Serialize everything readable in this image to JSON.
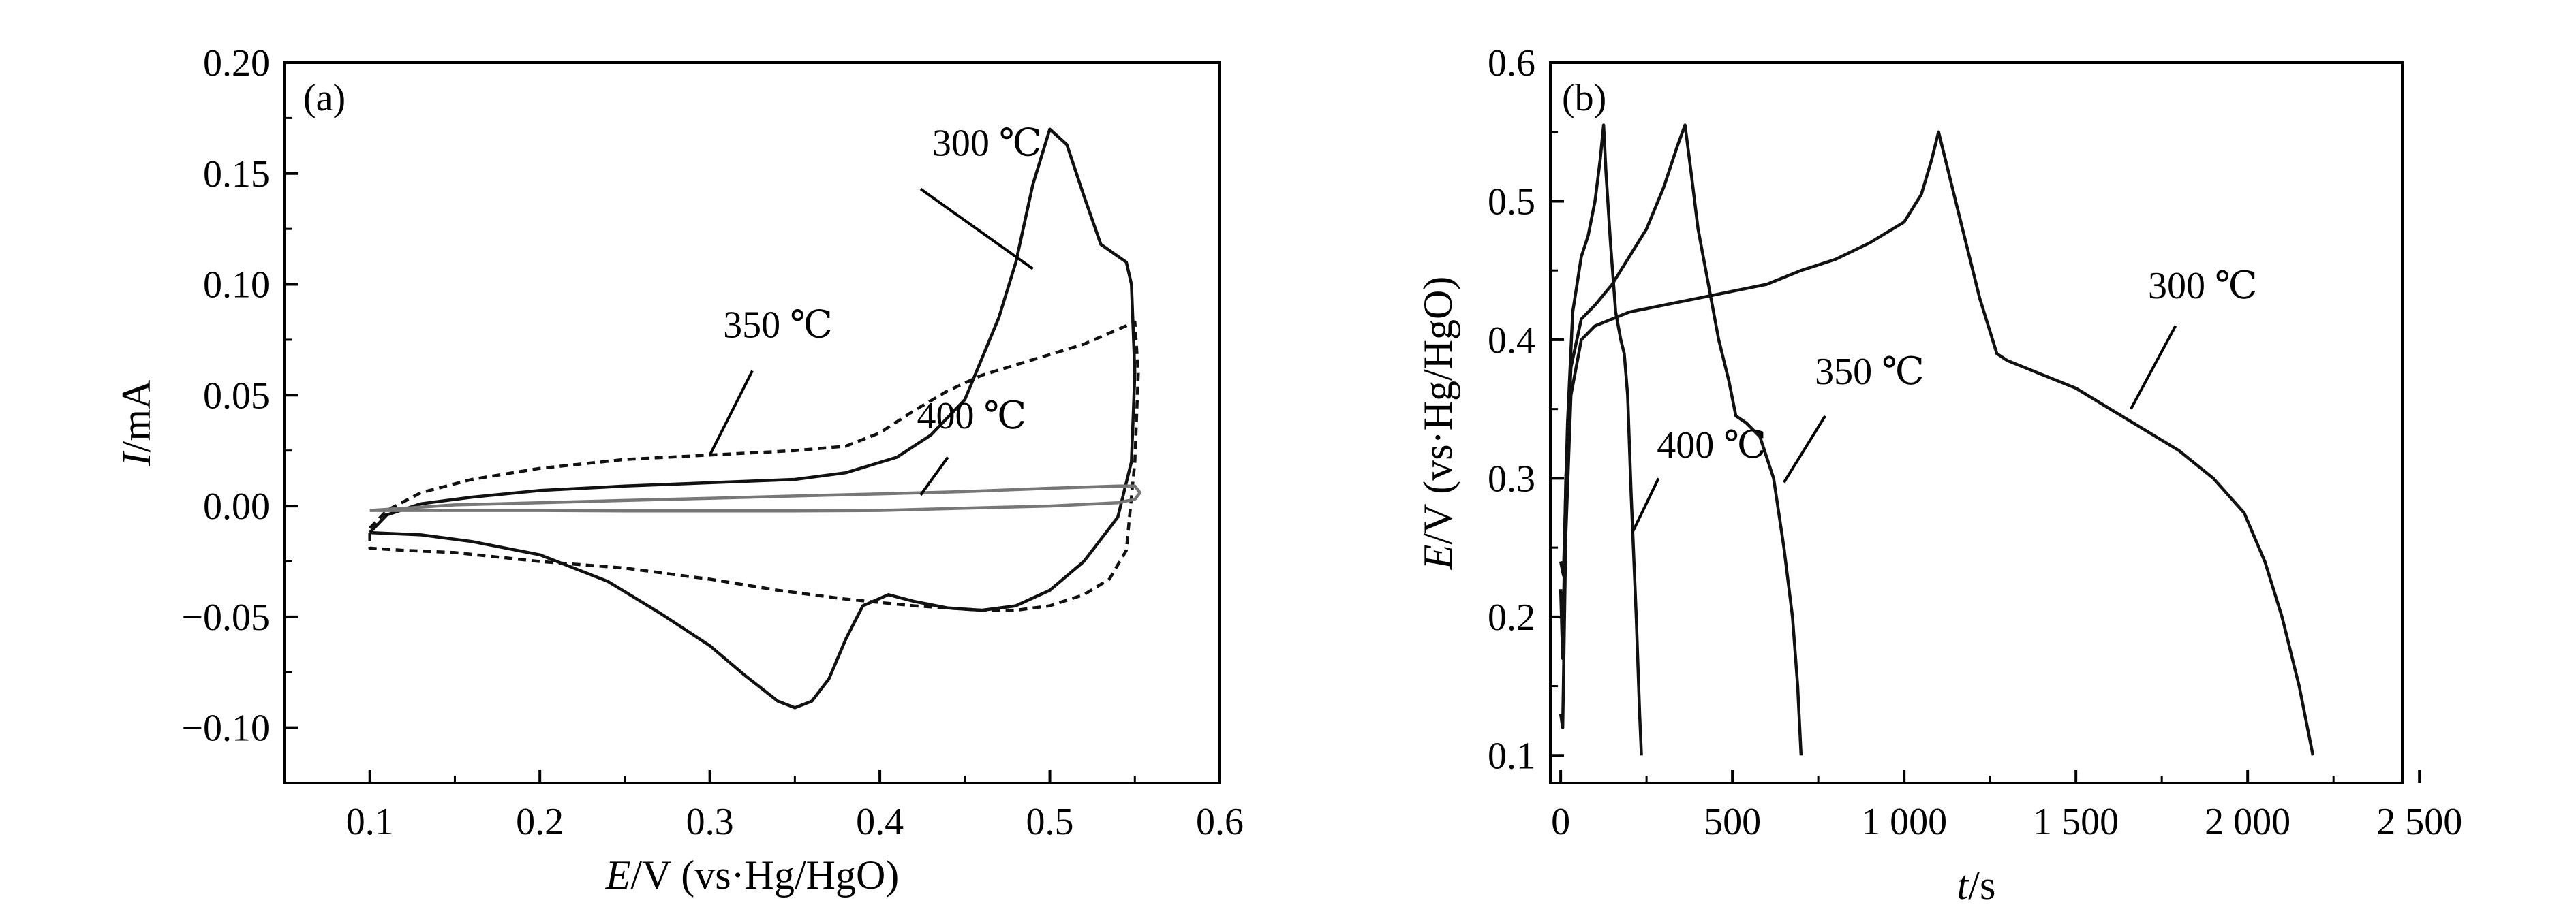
{
  "colors": {
    "axis": "#000000",
    "primary_line": "#111111",
    "secondary_line": "#777777"
  },
  "chart_data": [
    {
      "panel": "(a)",
      "type": "line",
      "xlabel": {
        "italic": "E",
        "rest": "/V (vs·Hg/HgO)"
      },
      "ylabel": {
        "italic": "I",
        "rest": "/mA"
      },
      "xlim": [
        0.05,
        0.6
      ],
      "ylim": [
        -0.125,
        0.2
      ],
      "xticks": [
        0.1,
        0.2,
        0.3,
        0.4,
        0.5,
        0.6
      ],
      "xtick_labels": [
        "0.1",
        "0.2",
        "0.3",
        "0.4",
        "0.5",
        "0.6"
      ],
      "yticks": [
        -0.1,
        -0.05,
        0.0,
        0.05,
        0.1,
        0.15,
        0.2
      ],
      "ytick_labels": [
        "−0.10",
        "−0.05",
        "0.00",
        "0.05",
        "0.10",
        "0.15",
        "0.20"
      ],
      "series": [
        {
          "name": "300 ℃",
          "style": "solid",
          "color": "#111111",
          "points": [
            [
              0.1,
              -0.012
            ],
            [
              0.11,
              -0.004
            ],
            [
              0.13,
              0.001
            ],
            [
              0.16,
              0.004
            ],
            [
              0.2,
              0.007
            ],
            [
              0.25,
              0.009
            ],
            [
              0.3,
              0.0105
            ],
            [
              0.35,
              0.012
            ],
            [
              0.38,
              0.015
            ],
            [
              0.41,
              0.022
            ],
            [
              0.43,
              0.032
            ],
            [
              0.45,
              0.048
            ],
            [
              0.47,
              0.085
            ],
            [
              0.48,
              0.11
            ],
            [
              0.49,
              0.145
            ],
            [
              0.5,
              0.17
            ],
            [
              0.51,
              0.163
            ],
            [
              0.52,
              0.14
            ],
            [
              0.53,
              0.118
            ],
            [
              0.545,
              0.11
            ],
            [
              0.548,
              0.1
            ],
            [
              0.55,
              0.06
            ],
            [
              0.548,
              0.02
            ],
            [
              0.54,
              -0.005
            ],
            [
              0.52,
              -0.025
            ],
            [
              0.5,
              -0.038
            ],
            [
              0.48,
              -0.045
            ],
            [
              0.46,
              -0.047
            ],
            [
              0.44,
              -0.046
            ],
            [
              0.42,
              -0.043
            ],
            [
              0.405,
              -0.04
            ],
            [
              0.39,
              -0.045
            ],
            [
              0.38,
              -0.06
            ],
            [
              0.37,
              -0.078
            ],
            [
              0.36,
              -0.088
            ],
            [
              0.35,
              -0.091
            ],
            [
              0.34,
              -0.088
            ],
            [
              0.32,
              -0.076
            ],
            [
              0.3,
              -0.063
            ],
            [
              0.27,
              -0.048
            ],
            [
              0.24,
              -0.034
            ],
            [
              0.2,
              -0.022
            ],
            [
              0.16,
              -0.016
            ],
            [
              0.13,
              -0.013
            ],
            [
              0.1,
              -0.012
            ]
          ]
        },
        {
          "name": "350 ℃",
          "style": "dashed",
          "color": "#111111",
          "points": [
            [
              0.1,
              -0.01
            ],
            [
              0.11,
              -0.002
            ],
            [
              0.13,
              0.006
            ],
            [
              0.16,
              0.012
            ],
            [
              0.2,
              0.017
            ],
            [
              0.25,
              0.021
            ],
            [
              0.3,
              0.023
            ],
            [
              0.35,
              0.025
            ],
            [
              0.38,
              0.027
            ],
            [
              0.4,
              0.033
            ],
            [
              0.42,
              0.043
            ],
            [
              0.44,
              0.052
            ],
            [
              0.46,
              0.059
            ],
            [
              0.49,
              0.066
            ],
            [
              0.52,
              0.073
            ],
            [
              0.55,
              0.083
            ],
            [
              0.552,
              0.06
            ],
            [
              0.55,
              0.02
            ],
            [
              0.545,
              -0.02
            ],
            [
              0.535,
              -0.033
            ],
            [
              0.52,
              -0.04
            ],
            [
              0.5,
              -0.045
            ],
            [
              0.48,
              -0.047
            ],
            [
              0.46,
              -0.047
            ],
            [
              0.42,
              -0.045
            ],
            [
              0.38,
              -0.042
            ],
            [
              0.34,
              -0.038
            ],
            [
              0.3,
              -0.033
            ],
            [
              0.25,
              -0.028
            ],
            [
              0.2,
              -0.025
            ],
            [
              0.15,
              -0.021
            ],
            [
              0.12,
              -0.02
            ],
            [
              0.1,
              -0.019
            ],
            [
              0.1,
              -0.01
            ]
          ]
        },
        {
          "name": "400 ℃",
          "style": "solid",
          "color": "#777777",
          "points": [
            [
              0.1,
              -0.002
            ],
            [
              0.15,
              0.0005
            ],
            [
              0.2,
              0.0015
            ],
            [
              0.25,
              0.0025
            ],
            [
              0.3,
              0.0035
            ],
            [
              0.35,
              0.0045
            ],
            [
              0.4,
              0.0055
            ],
            [
              0.45,
              0.0065
            ],
            [
              0.5,
              0.008
            ],
            [
              0.54,
              0.009
            ],
            [
              0.55,
              0.009
            ],
            [
              0.553,
              0.006
            ],
            [
              0.55,
              0.003
            ],
            [
              0.54,
              0.0015
            ],
            [
              0.5,
              0.0
            ],
            [
              0.45,
              -0.001
            ],
            [
              0.4,
              -0.002
            ],
            [
              0.35,
              -0.0022
            ],
            [
              0.3,
              -0.0022
            ],
            [
              0.25,
              -0.0022
            ],
            [
              0.2,
              -0.002
            ],
            [
              0.15,
              -0.002
            ],
            [
              0.1,
              -0.002
            ]
          ]
        }
      ],
      "annotations": [
        {
          "text": "300 ℃",
          "at": [
            0.463,
            0.158
          ],
          "anchor": "middle",
          "point": [
            0.49,
            0.107
          ],
          "from": [
            0.424,
            0.143
          ]
        },
        {
          "text": "350 ℃",
          "at": [
            0.34,
            0.076
          ],
          "anchor": "middle",
          "point": [
            0.3,
            0.023
          ],
          "from": [
            0.325,
            0.061
          ]
        },
        {
          "text": "400 ℃",
          "at": [
            0.454,
            0.035
          ],
          "anchor": "middle",
          "point": [
            0.424,
            0.005
          ],
          "from": [
            0.44,
            0.022
          ]
        }
      ]
    },
    {
      "panel": "(b)",
      "type": "line",
      "xlabel": {
        "italic": "t",
        "rest": "/s"
      },
      "ylabel": {
        "italic": "E",
        "rest": "/V (vs·Hg/HgO)"
      },
      "xlim": [
        -30,
        2450
      ],
      "ylim": [
        0.08,
        0.6
      ],
      "xticks": [
        0,
        500,
        1000,
        1500,
        2000,
        2500
      ],
      "xtick_labels": [
        "0",
        "500",
        "1 000",
        "1 500",
        "2 000",
        "2 500"
      ],
      "yticks": [
        0.1,
        0.2,
        0.3,
        0.4,
        0.5,
        0.6
      ],
      "ytick_labels": [
        "0.1",
        "0.2",
        "0.3",
        "0.4",
        "0.5",
        "0.6"
      ],
      "series": [
        {
          "name": "400 ℃",
          "style": "solid",
          "color": "#111111",
          "points": [
            [
              0,
              0.24
            ],
            [
              8,
              0.23
            ],
            [
              20,
              0.34
            ],
            [
              35,
              0.42
            ],
            [
              60,
              0.46
            ],
            [
              80,
              0.475
            ],
            [
              100,
              0.5
            ],
            [
              115,
              0.53
            ],
            [
              125,
              0.555
            ],
            [
              132,
              0.52
            ],
            [
              145,
              0.47
            ],
            [
              160,
              0.42
            ],
            [
              175,
              0.4
            ],
            [
              185,
              0.39
            ],
            [
              195,
              0.36
            ],
            [
              205,
              0.29
            ],
            [
              220,
              0.2
            ],
            [
              230,
              0.13
            ],
            [
              235,
              0.1
            ]
          ]
        },
        {
          "name": "350 ℃",
          "style": "solid",
          "color": "#111111",
          "points": [
            [
              0,
              0.22
            ],
            [
              6,
              0.17
            ],
            [
              15,
              0.3
            ],
            [
              30,
              0.38
            ],
            [
              60,
              0.415
            ],
            [
              100,
              0.425
            ],
            [
              150,
              0.44
            ],
            [
              200,
              0.46
            ],
            [
              250,
              0.48
            ],
            [
              300,
              0.51
            ],
            [
              340,
              0.54
            ],
            [
              362,
              0.555
            ],
            [
              380,
              0.52
            ],
            [
              400,
              0.48
            ],
            [
              430,
              0.44
            ],
            [
              460,
              0.4
            ],
            [
              490,
              0.37
            ],
            [
              510,
              0.345
            ],
            [
              540,
              0.34
            ],
            [
              580,
              0.33
            ],
            [
              620,
              0.3
            ],
            [
              650,
              0.25
            ],
            [
              675,
              0.2
            ],
            [
              690,
              0.15
            ],
            [
              700,
              0.1
            ]
          ]
        },
        {
          "name": "300 ℃",
          "style": "solid",
          "color": "#111111",
          "points": [
            [
              0,
              0.13
            ],
            [
              6,
              0.12
            ],
            [
              15,
              0.26
            ],
            [
              30,
              0.36
            ],
            [
              60,
              0.4
            ],
            [
              100,
              0.41
            ],
            [
              200,
              0.42
            ],
            [
              300,
              0.425
            ],
            [
              400,
              0.43
            ],
            [
              500,
              0.435
            ],
            [
              600,
              0.44
            ],
            [
              700,
              0.45
            ],
            [
              800,
              0.458
            ],
            [
              900,
              0.47
            ],
            [
              1000,
              0.485
            ],
            [
              1050,
              0.505
            ],
            [
              1080,
              0.53
            ],
            [
              1100,
              0.55
            ],
            [
              1130,
              0.52
            ],
            [
              1170,
              0.48
            ],
            [
              1220,
              0.43
            ],
            [
              1270,
              0.39
            ],
            [
              1300,
              0.385
            ],
            [
              1350,
              0.38
            ],
            [
              1400,
              0.375
            ],
            [
              1500,
              0.365
            ],
            [
              1600,
              0.35
            ],
            [
              1700,
              0.335
            ],
            [
              1800,
              0.32
            ],
            [
              1900,
              0.3
            ],
            [
              1990,
              0.275
            ],
            [
              2050,
              0.24
            ],
            [
              2100,
              0.2
            ],
            [
              2150,
              0.15
            ],
            [
              2190,
              0.1
            ]
          ]
        }
      ],
      "annotations": [
        {
          "text": "400 ℃",
          "at": [
            280,
            0.315
          ],
          "anchor": "start",
          "point": [
            207,
            0.26
          ],
          "from": [
            285,
            0.3
          ]
        },
        {
          "text": "350 ℃",
          "at": [
            740,
            0.368
          ],
          "anchor": "start",
          "point": [
            650,
            0.297
          ],
          "from": [
            770,
            0.345
          ]
        },
        {
          "text": "300 ℃",
          "at": [
            1710,
            0.43
          ],
          "anchor": "start",
          "point": [
            1660,
            0.35
          ],
          "from": [
            1790,
            0.41
          ]
        }
      ]
    }
  ]
}
